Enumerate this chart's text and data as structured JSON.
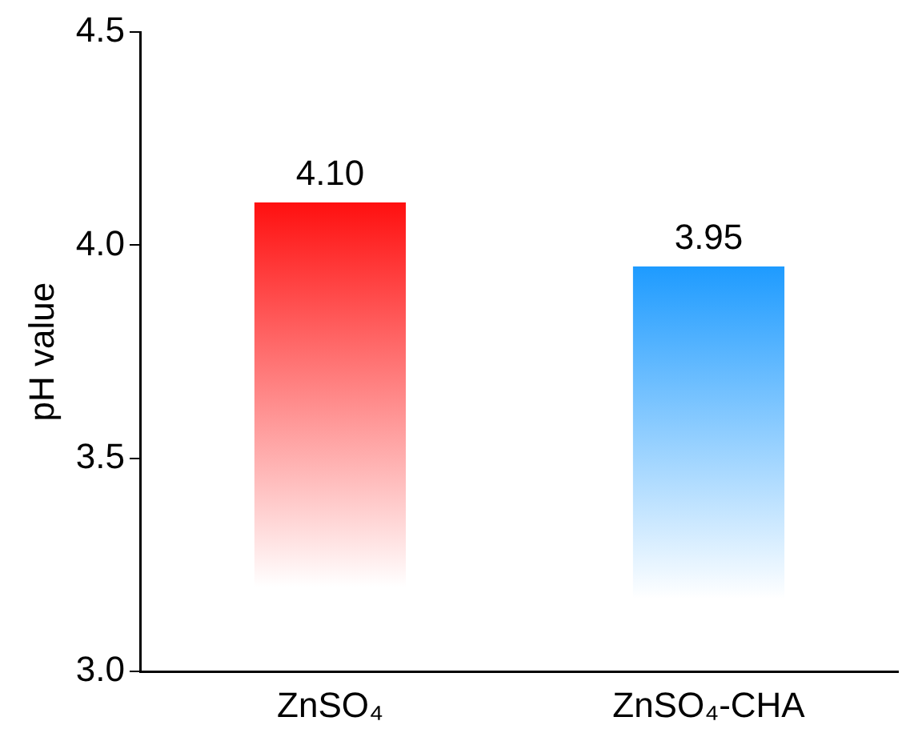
{
  "chart_data": {
    "type": "bar",
    "categories": [
      "ZnSO₄",
      "ZnSO₄-CHA"
    ],
    "values": [
      4.1,
      3.95
    ],
    "colors": [
      "#ff1010",
      "#1e9bff"
    ],
    "value_labels": [
      "4.10",
      "3.95"
    ],
    "ylabel": "pH value",
    "ylim": [
      3.0,
      4.5
    ],
    "yticks": [
      {
        "value": 3.0,
        "label": "3.0"
      },
      {
        "value": 3.5,
        "label": "3.5"
      },
      {
        "value": 4.0,
        "label": "4.0"
      },
      {
        "value": 4.5,
        "label": "4.5"
      }
    ],
    "grid": false,
    "legend": false
  }
}
